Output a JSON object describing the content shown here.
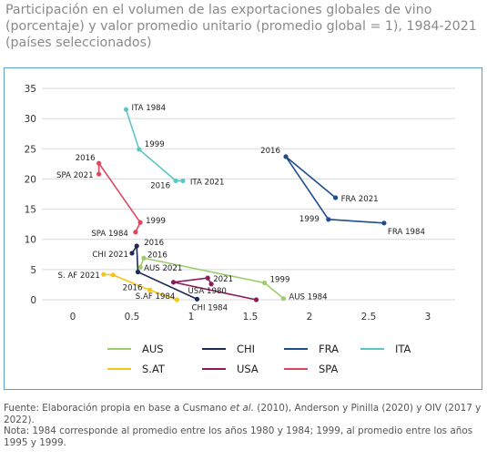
{
  "title": "Participación en el volumen de las exportaciones globales de vino (porcentaje) y valor promedio unitario (promedio global = 1), 1984-2021 (países seleccionados)",
  "chart_data": {
    "type": "line",
    "title": "Participación en el volumen de las exportaciones globales de vino (porcentaje) y valor promedio unitario (promedio global = 1), 1984-2021 (países seleccionados)",
    "xlim": [
      0,
      3
    ],
    "ylim": [
      0,
      35
    ],
    "x_ticks": [
      "0",
      "0.5",
      "1",
      "1.5",
      "2",
      "2.5",
      "3"
    ],
    "y_ticks": [
      "35",
      "30",
      "25",
      "20",
      "15",
      "10",
      "5",
      "0"
    ],
    "grid": true,
    "legend_position": "bottom",
    "series": [
      {
        "name": "AUS",
        "color": "#9dcd6b",
        "points": [
          {
            "x": 1.78,
            "y": 0.2,
            "label": "AUS 1984"
          },
          {
            "x": 1.62,
            "y": 2.8,
            "label": "1999"
          },
          {
            "x": 0.6,
            "y": 6.9,
            "label": "2016"
          },
          {
            "x": 0.57,
            "y": 5.4,
            "label": "AUS 2021"
          }
        ]
      },
      {
        "name": "CHI",
        "color": "#1f2b55",
        "points": [
          {
            "x": 1.05,
            "y": 0.1,
            "label": "CHI 1984"
          },
          {
            "x": 0.55,
            "y": 4.6,
            "label": ""
          },
          {
            "x": 0.54,
            "y": 8.9,
            "label": "2016"
          },
          {
            "x": 0.5,
            "y": 7.7,
            "label": "CHI 2021"
          }
        ]
      },
      {
        "name": "FRA",
        "color": "#1f4e8c",
        "points": [
          {
            "x": 2.63,
            "y": 12.7,
            "label": "FRA 1984"
          },
          {
            "x": 2.16,
            "y": 13.3,
            "label": "1999"
          },
          {
            "x": 1.8,
            "y": 23.7,
            "label": "2016"
          },
          {
            "x": 2.22,
            "y": 16.9,
            "label": "FRA 2021"
          }
        ]
      },
      {
        "name": "ITA",
        "color": "#5cc6c6",
        "points": [
          {
            "x": 0.45,
            "y": 31.5,
            "label": "ITA 1984"
          },
          {
            "x": 0.56,
            "y": 24.9,
            "label": "1999"
          },
          {
            "x": 0.87,
            "y": 19.7,
            "label": "2016"
          },
          {
            "x": 0.93,
            "y": 19.7,
            "label": "ITA 2021"
          }
        ]
      },
      {
        "name": "S.AT",
        "color": "#f5c518",
        "points": [
          {
            "x": 0.88,
            "y": 0.0,
            "label": "S.AF 1984"
          },
          {
            "x": 0.65,
            "y": 1.6,
            "label": "2016"
          },
          {
            "x": 0.34,
            "y": 4.1,
            "label": ""
          },
          {
            "x": 0.26,
            "y": 4.2,
            "label": "S. AF 2021"
          }
        ]
      },
      {
        "name": "USA",
        "color": "#8b1a5a",
        "points": [
          {
            "x": 1.55,
            "y": 0.0,
            "label": ""
          },
          {
            "x": 0.85,
            "y": 2.9,
            "label": "USA 1980"
          },
          {
            "x": 1.14,
            "y": 3.6,
            "label": "2021"
          },
          {
            "x": 1.17,
            "y": 2.6,
            "label": ""
          }
        ]
      },
      {
        "name": "SPA",
        "color": "#e0465e",
        "points": [
          {
            "x": 0.53,
            "y": 11.2,
            "label": "SPA 1984"
          },
          {
            "x": 0.57,
            "y": 12.8,
            "label": "1999"
          },
          {
            "x": 0.22,
            "y": 22.6,
            "label": "2016"
          },
          {
            "x": 0.22,
            "y": 20.8,
            "label": "SPA 2021"
          }
        ]
      }
    ]
  },
  "footer": {
    "source_prefix": "Fuente: Elaboración propia en base a Cusmano ",
    "source_em": "et al.",
    "source_suffix": " (2010), Anderson y Pinilla (2020) y OIV (2017 y 2022).",
    "note": "Nota: 1984 corresponde al promedio entre los años 1980 y 1984; 1999, al promedio entre los años 1995 y 1999."
  }
}
